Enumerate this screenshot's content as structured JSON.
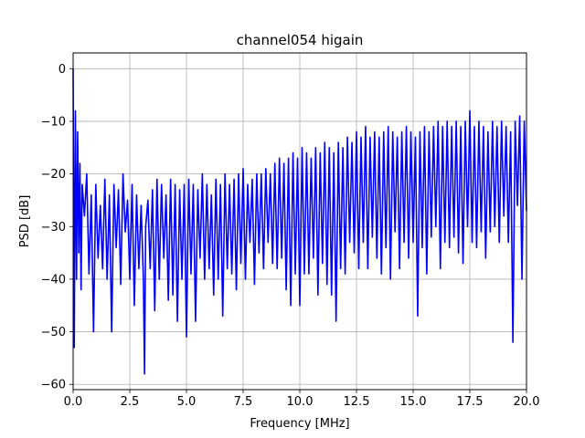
{
  "chart_data": {
    "type": "line",
    "title": "channel054 higain",
    "xlabel": "Frequency [MHz]",
    "ylabel": "PSD [dB]",
    "xlim": [
      0,
      20
    ],
    "ylim": [
      -61,
      3
    ],
    "xticks": [
      0,
      2.5,
      5,
      7.5,
      10,
      12.5,
      15,
      17.5,
      20
    ],
    "xtick_labels": [
      "0.0",
      "2.5",
      "5.0",
      "7.5",
      "10.0",
      "12.5",
      "15.0",
      "17.5",
      "20.0"
    ],
    "yticks": [
      0,
      -10,
      -20,
      -30,
      -40,
      -50,
      -60
    ],
    "ytick_labels": [
      "0",
      "−10",
      "−20",
      "−30",
      "−40",
      "−50",
      "−60"
    ],
    "grid": true,
    "legend": "none",
    "series": [
      {
        "color": "#0000ff",
        "x": [
          0,
          0.05,
          0.1,
          0.15,
          0.2,
          0.25,
          0.3,
          0.35,
          0.4,
          0.5,
          0.6,
          0.7,
          0.8,
          0.9,
          1.0,
          1.1,
          1.2,
          1.3,
          1.4,
          1.5,
          1.6,
          1.7,
          1.8,
          1.9,
          2.0,
          2.1,
          2.2,
          2.3,
          2.4,
          2.5,
          2.6,
          2.7,
          2.8,
          2.9,
          3.0,
          3.1,
          3.15,
          3.2,
          3.3,
          3.4,
          3.5,
          3.6,
          3.7,
          3.8,
          3.9,
          4.0,
          4.1,
          4.2,
          4.3,
          4.4,
          4.5,
          4.6,
          4.7,
          4.8,
          4.9,
          5.0,
          5.1,
          5.2,
          5.3,
          5.4,
          5.5,
          5.6,
          5.7,
          5.8,
          5.9,
          6.0,
          6.1,
          6.2,
          6.3,
          6.4,
          6.5,
          6.6,
          6.7,
          6.8,
          6.9,
          7.0,
          7.1,
          7.2,
          7.3,
          7.4,
          7.5,
          7.6,
          7.7,
          7.8,
          7.9,
          8.0,
          8.1,
          8.2,
          8.3,
          8.4,
          8.5,
          8.6,
          8.7,
          8.8,
          8.9,
          9.0,
          9.1,
          9.2,
          9.3,
          9.4,
          9.5,
          9.6,
          9.7,
          9.8,
          9.9,
          10.0,
          10.1,
          10.2,
          10.3,
          10.4,
          10.5,
          10.6,
          10.7,
          10.8,
          10.9,
          11.0,
          11.1,
          11.2,
          11.3,
          11.4,
          11.5,
          11.6,
          11.7,
          11.8,
          11.9,
          12.0,
          12.1,
          12.2,
          12.3,
          12.4,
          12.5,
          12.6,
          12.7,
          12.8,
          12.9,
          13.0,
          13.1,
          13.2,
          13.3,
          13.4,
          13.5,
          13.6,
          13.7,
          13.8,
          13.9,
          14.0,
          14.1,
          14.2,
          14.3,
          14.4,
          14.5,
          14.6,
          14.7,
          14.8,
          14.9,
          15.0,
          15.1,
          15.2,
          15.3,
          15.4,
          15.5,
          15.6,
          15.7,
          15.8,
          15.9,
          16.0,
          16.1,
          16.2,
          16.3,
          16.4,
          16.5,
          16.6,
          16.7,
          16.8,
          16.9,
          17.0,
          17.1,
          17.2,
          17.3,
          17.4,
          17.5,
          17.6,
          17.7,
          17.8,
          17.9,
          18.0,
          18.1,
          18.2,
          18.3,
          18.4,
          18.5,
          18.6,
          18.7,
          18.8,
          18.9,
          19.0,
          19.1,
          19.2,
          19.3,
          19.4,
          19.5,
          19.6,
          19.7,
          19.8,
          19.9,
          20.0
        ],
        "y": [
          0,
          -53,
          -8,
          -40,
          -12,
          -35,
          -18,
          -42,
          -22,
          -28,
          -20,
          -39,
          -24,
          -50,
          -22,
          -36,
          -26,
          -38,
          -21,
          -40,
          -24,
          -50,
          -22,
          -34,
          -23,
          -41,
          -20,
          -31,
          -25,
          -40,
          -22,
          -45,
          -24,
          -38,
          -26,
          -40,
          -58,
          -30,
          -25,
          -38,
          -23,
          -46,
          -21,
          -40,
          -22,
          -36,
          -24,
          -44,
          -21,
          -43,
          -22,
          -48,
          -23,
          -40,
          -22,
          -51,
          -21,
          -39,
          -22,
          -48,
          -23,
          -36,
          -20,
          -40,
          -22,
          -38,
          -24,
          -43,
          -21,
          -40,
          -22,
          -47,
          -20,
          -38,
          -22,
          -39,
          -21,
          -42,
          -20,
          -37,
          -19,
          -40,
          -22,
          -33,
          -21,
          -41,
          -20,
          -35,
          -20,
          -38,
          -19,
          -33,
          -20,
          -37,
          -18,
          -38,
          -17,
          -36,
          -18,
          -42,
          -17,
          -45,
          -16,
          -39,
          -17,
          -45,
          -15,
          -39,
          -16,
          -39,
          -17,
          -36,
          -15,
          -43,
          -16,
          -37,
          -14,
          -41,
          -15,
          -43,
          -16,
          -48,
          -14,
          -38,
          -15,
          -39,
          -13,
          -33,
          -14,
          -35,
          -12,
          -38,
          -13,
          -33,
          -11,
          -38,
          -13,
          -32,
          -12,
          -36,
          -13,
          -39,
          -12,
          -34,
          -11,
          -40,
          -12,
          -31,
          -13,
          -38,
          -12,
          -33,
          -11,
          -36,
          -12,
          -33,
          -13,
          -47,
          -12,
          -34,
          -11,
          -39,
          -12,
          -32,
          -11,
          -30,
          -10,
          -38,
          -11,
          -33,
          -10,
          -34,
          -11,
          -32,
          -10,
          -35,
          -11,
          -37,
          -10,
          -30,
          -8,
          -33,
          -11,
          -34,
          -10,
          -31,
          -11,
          -36,
          -12,
          -31,
          -10,
          -30,
          -11,
          -33,
          -10,
          -28,
          -11,
          -33,
          -12,
          -52,
          -10,
          -26,
          -9,
          -40,
          -10,
          -27
        ]
      }
    ]
  }
}
